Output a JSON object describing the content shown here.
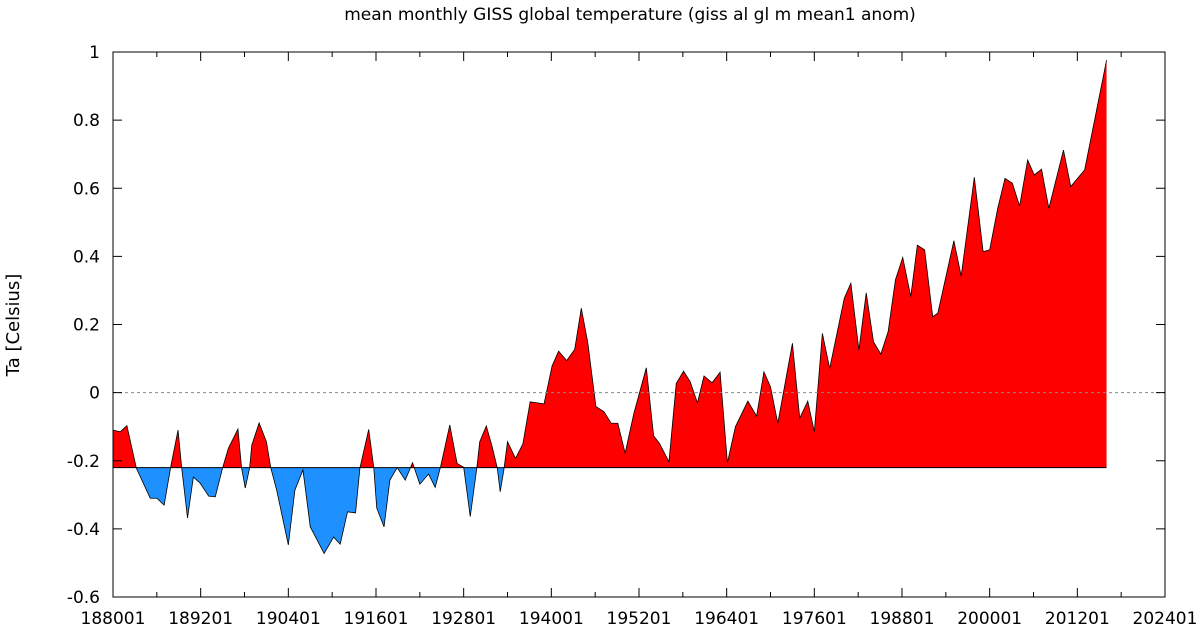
{
  "chart_data": {
    "type": "area",
    "title": "mean monthly GISS global temperature (giss al gl m mean1 anom)",
    "xlabel": "",
    "ylabel": "Ta [Celsius]",
    "xlim": [
      1880,
      2024
    ],
    "ylim": [
      -0.6,
      1
    ],
    "baseline": -0.22,
    "zero_line": {
      "value": 0,
      "style": "dotted"
    },
    "grid": false,
    "colors": {
      "above": "#ff0000",
      "below": "#1e90ff",
      "outline": "#000000"
    },
    "x_tick_labels": [
      "188001",
      "189201",
      "190401",
      "191601",
      "192801",
      "194001",
      "195201",
      "196401",
      "197601",
      "198801",
      "200001",
      "201201",
      "202401"
    ],
    "x_tick_years": [
      1880,
      1892,
      1904,
      1916,
      1928,
      1940,
      1952,
      1964,
      1976,
      1988,
      2000,
      2012,
      2024
    ],
    "y_ticks": [
      -0.6,
      -0.4,
      -0.2,
      0,
      0.2,
      0.4,
      0.6,
      0.8,
      1
    ],
    "y_tick_labels": [
      "-0.6",
      "-0.4",
      "-0.2",
      "0",
      "0.2",
      "0.4",
      "0.6",
      "0.8",
      "1"
    ],
    "x": [
      1880.0,
      1881.0,
      1881.9,
      1883.2,
      1885.1,
      1886.0,
      1887.0,
      1887.9,
      1888.9,
      1889.4,
      1890.2,
      1891.0,
      1891.9,
      1893.1,
      1894.0,
      1895.0,
      1895.8,
      1897.1,
      1897.6,
      1898.1,
      1898.7,
      1899.0,
      1900.0,
      1901.0,
      1901.6,
      1902.4,
      1904.0,
      1904.9,
      1906.0,
      1907.0,
      1908.9,
      1910.2,
      1911.1,
      1912.1,
      1913.2,
      1913.8,
      1915.0,
      1915.7,
      1916.1,
      1917.1,
      1917.9,
      1918.9,
      1920.0,
      1921.0,
      1922.0,
      1923.2,
      1924.1,
      1924.8,
      1926.1,
      1927.1,
      1928.0,
      1928.9,
      1929.8,
      1930.2,
      1931.1,
      1931.9,
      1932.6,
      1933.0,
      1933.5,
      1934.0,
      1935.1,
      1936.1,
      1937.1,
      1939.0,
      1940.1,
      1941.0,
      1942.1,
      1943.2,
      1944.1,
      1945.0,
      1946.1,
      1947.2,
      1948.2,
      1949.1,
      1950.1,
      1951.3,
      1953.0,
      1954.0,
      1954.8,
      1956.1,
      1957.1,
      1958.1,
      1959.0,
      1960.0,
      1960.9,
      1962.0,
      1963.1,
      1964.1,
      1965.2,
      1966.9,
      1968.1,
      1969.1,
      1970.0,
      1971.0,
      1973.0,
      1974.0,
      1975.1,
      1976.0,
      1977.1,
      1978.1,
      1980.1,
      1981.0,
      1982.1,
      1983.1,
      1984.1,
      1985.1,
      1986.1,
      1987.1,
      1988.1,
      1989.2,
      1990.1,
      1991.1,
      1992.2,
      1992.9,
      1995.1,
      1996.1,
      1997.9,
      1999.1,
      2000.0,
      2001.1,
      2002.1,
      2003.1,
      2004.1,
      2005.2,
      2006.1,
      2007.1,
      2008.1,
      2010.1,
      2011.1,
      2013.0,
      2016.0
    ],
    "y": [
      -0.11,
      -0.115,
      -0.097,
      -0.222,
      -0.31,
      -0.31,
      -0.33,
      -0.218,
      -0.11,
      -0.22,
      -0.368,
      -0.248,
      -0.265,
      -0.304,
      -0.306,
      -0.221,
      -0.163,
      -0.107,
      -0.221,
      -0.28,
      -0.221,
      -0.154,
      -0.089,
      -0.144,
      -0.221,
      -0.286,
      -0.447,
      -0.286,
      -0.227,
      -0.394,
      -0.472,
      -0.424,
      -0.445,
      -0.35,
      -0.353,
      -0.221,
      -0.108,
      -0.221,
      -0.339,
      -0.394,
      -0.257,
      -0.22,
      -0.257,
      -0.206,
      -0.269,
      -0.239,
      -0.278,
      -0.221,
      -0.095,
      -0.208,
      -0.219,
      -0.364,
      -0.221,
      -0.144,
      -0.098,
      -0.159,
      -0.221,
      -0.291,
      -0.227,
      -0.144,
      -0.193,
      -0.151,
      -0.027,
      -0.033,
      0.078,
      0.122,
      0.094,
      0.127,
      0.248,
      0.145,
      -0.041,
      -0.056,
      -0.09,
      -0.09,
      -0.178,
      -0.061,
      0.073,
      -0.127,
      -0.149,
      -0.203,
      0.027,
      0.063,
      0.032,
      -0.03,
      0.049,
      0.029,
      0.06,
      -0.206,
      -0.1,
      -0.025,
      -0.069,
      0.061,
      0.017,
      -0.09,
      0.145,
      -0.075,
      -0.025,
      -0.115,
      0.174,
      0.071,
      0.277,
      0.321,
      0.125,
      0.293,
      0.149,
      0.113,
      0.179,
      0.331,
      0.397,
      0.282,
      0.433,
      0.419,
      0.223,
      0.233,
      0.446,
      0.342,
      0.632,
      0.414,
      0.419,
      0.541,
      0.629,
      0.615,
      0.548,
      0.683,
      0.639,
      0.656,
      0.541,
      0.712,
      0.605,
      0.654,
      0.976
    ]
  }
}
